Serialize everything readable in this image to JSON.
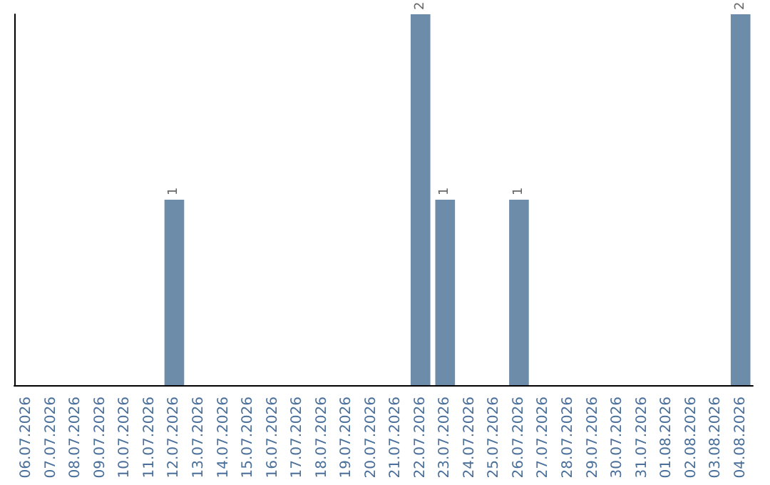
{
  "chart_data": {
    "type": "bar",
    "categories": [
      "06.07.2026",
      "07.07.2026",
      "08.07.2026",
      "09.07.2026",
      "10.07.2026",
      "11.07.2026",
      "12.07.2026",
      "13.07.2026",
      "14.07.2026",
      "15.07.2026",
      "16.07.2026",
      "17.07.2026",
      "18.07.2026",
      "19.07.2026",
      "20.07.2026",
      "21.07.2026",
      "22.07.2026",
      "23.07.2026",
      "24.07.2026",
      "25.07.2026",
      "26.07.2026",
      "27.07.2026",
      "28.07.2026",
      "29.07.2026",
      "30.07.2026",
      "31.07.2026",
      "01.08.2026",
      "02.08.2026",
      "03.08.2026",
      "04.08.2026"
    ],
    "values": [
      0,
      0,
      0,
      0,
      0,
      0,
      1,
      0,
      0,
      0,
      0,
      0,
      0,
      0,
      0,
      0,
      2,
      1,
      0,
      0,
      1,
      0,
      0,
      0,
      0,
      0,
      0,
      0,
      0,
      2
    ],
    "color": "#6d8caa",
    "ylim": [
      0,
      2
    ],
    "tick_labels": "x",
    "value_labels": [
      null,
      null,
      null,
      null,
      null,
      null,
      "1",
      null,
      null,
      null,
      null,
      null,
      null,
      null,
      null,
      null,
      "2",
      "1",
      null,
      null,
      "1",
      null,
      null,
      null,
      null,
      null,
      null,
      null,
      null,
      "2"
    ]
  }
}
